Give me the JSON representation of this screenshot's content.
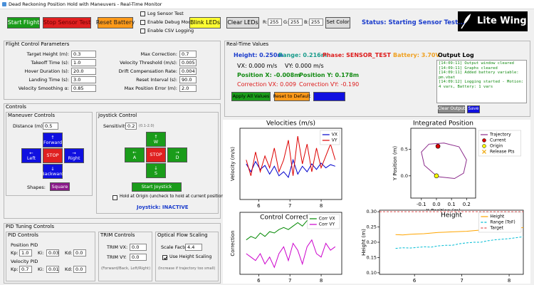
{
  "window": {
    "title": "Dead Reckoning Position Hold with Maneuvers - Real-Time Monitor"
  },
  "toolbar": {
    "start_flight": "Start Flight",
    "stop_sensor_test": "Stop Sensor Test",
    "reset_battery": "Reset Battery",
    "checkboxes": [
      "Log Sensor Test",
      "Enable Debug Mode",
      "Enable CSV Logging"
    ],
    "blink_leds": "Blink LEDs",
    "clear_leds": "Clear LEDs",
    "rgb": [
      {
        "label": "R:",
        "value": "255"
      },
      {
        "label": "G:",
        "value": "255"
      },
      {
        "label": "B:",
        "value": "255"
      }
    ],
    "set_color": "Set Color",
    "status": "Status: Starting Sensor Test...",
    "logo": "Lite Wing"
  },
  "flight_params": {
    "title": "Flight Control Parameters",
    "left": [
      {
        "label": "Target Height (m):",
        "value": "0.3"
      },
      {
        "label": "Takeoff Time (s):",
        "value": "1.0"
      },
      {
        "label": "Hover Duration (s):",
        "value": "20.0"
      },
      {
        "label": "Landing Time (s):",
        "value": "3.0"
      },
      {
        "label": "Velocity Smoothing α:",
        "value": "0.85"
      }
    ],
    "right": [
      {
        "label": "Max Correction:",
        "value": "0.7"
      },
      {
        "label": "Velocity Threshold (m/s):",
        "value": "0.005"
      },
      {
        "label": "Drift Compensation Rate:",
        "value": "0.004"
      },
      {
        "label": "Reset Interval (s):",
        "value": "90.0"
      },
      {
        "label": "Max Position Error (m):",
        "value": "2.0"
      }
    ]
  },
  "realtime": {
    "title": "Real-Time Values",
    "height": "Height: 0.250m",
    "range": "Range: 0.216m",
    "phase": "Phase: SENSOR_TEST",
    "battery": "Battery: 3.70V",
    "vx": "VX: 0.000 m/s",
    "vy": "VY: 0.000 m/s",
    "pos_x": "Position X: -0.008m",
    "pos_y": "Position Y: 0.178m",
    "corr_vx": "Correction VX: 0.009",
    "corr_vy": "Correction VY: -0.190",
    "apply": "Apply All Values",
    "reset": "Reset to Default"
  },
  "output_log": {
    "title": "Output Log",
    "lines": [
      "[14:09:11] Output window cleared",
      "[14:09:11] Graphs cleared",
      "[14:09:11] Added battery variable: pm.vbat",
      "[14:09:12] Logging started - Motion: 4 vars, Battery: 1 vars"
    ],
    "clear": "Clear Output",
    "save": "Save"
  },
  "controls": {
    "title": "Controls",
    "maneuver": {
      "title": "Maneuver Controls",
      "distance_label": "Distance (m):",
      "distance": "0.5",
      "buttons": [
        {
          "icon": "↑",
          "label": "Forward"
        },
        {
          "icon": "←",
          "label": "Left"
        },
        {
          "label": "STOP"
        },
        {
          "icon": "→",
          "label": "Right"
        },
        {
          "icon": "↓",
          "label": "Backward"
        }
      ],
      "shapes_label": "Shapes:",
      "shape": "Square"
    },
    "joystick": {
      "title": "Joystick Control",
      "sensitivity_label": "Sensitivity:",
      "sensitivity": "0.2",
      "range": "(0.1-2.0)",
      "buttons": [
        {
          "icon": "↑",
          "label": "W"
        },
        {
          "icon": "←",
          "label": "A"
        },
        {
          "label": "STOP"
        },
        {
          "icon": "→",
          "label": "D"
        },
        {
          "icon": "↓",
          "label": "S"
        }
      ],
      "start": "Start Joystick",
      "hold": "Hold at Origin (uncheck to hold at current position)",
      "status": "Joystick: INACTIVE"
    }
  },
  "pid": {
    "title": "PID Tuning Controls",
    "pid_controls": {
      "title": "PID Controls",
      "groups": [
        {
          "title": "Position PID",
          "gains": [
            {
              "label": "Kp:",
              "value": "1.0"
            },
            {
              "label": "Ki:",
              "value": "0.03"
            },
            {
              "label": "Kd:",
              "value": "0.0"
            }
          ]
        },
        {
          "title": "Velocity PID",
          "gains": [
            {
              "label": "Kp:",
              "value": "0.7"
            },
            {
              "label": "Ki:",
              "value": "0.01"
            },
            {
              "label": "Kd:",
              "value": "0.0"
            }
          ]
        }
      ]
    },
    "trim": {
      "title": "TRIM Controls",
      "fields": [
        {
          "label": "TRIM VX:",
          "value": "0.0"
        },
        {
          "label": "TRIM VY:",
          "value": "0.0"
        }
      ],
      "note": "(Forward/Back, Left/Right)"
    },
    "optical_flow": {
      "title": "Optical Flow Scaling",
      "scale_label": "Scale Factor:",
      "scale": "4.4",
      "use_height": "Use Height Scaling",
      "use_height_checked": true,
      "note": "(Increase if trajectory too small)"
    }
  },
  "chart_data": [
    {
      "type": "line",
      "title": "Velocities (m/s)",
      "ylabel": "Velocity (m/s)",
      "xlim": [
        5.4,
        8.66
      ],
      "ylim": [
        -0.4,
        0.5
      ],
      "xticks": [
        6,
        7,
        8
      ],
      "legend": "upper right",
      "series": [
        {
          "name": "VX",
          "color": "#0000cc",
          "x": [
            5.6,
            5.75,
            5.9,
            6.05,
            6.2,
            6.35,
            6.5,
            6.65,
            6.8,
            6.95,
            7.1,
            7.25,
            7.4,
            7.55,
            7.7,
            7.85,
            8.0,
            8.15,
            8.3,
            8.45
          ],
          "values": [
            0.05,
            -0.05,
            0.08,
            -0.02,
            0.03,
            -0.08,
            0.02,
            -0.1,
            -0.05,
            -0.12,
            0.1,
            -0.08,
            0.02,
            -0.05,
            0.05,
            -0.02,
            0.06,
            0.0,
            0.04,
            0.02
          ]
        },
        {
          "name": "VY",
          "color": "#dd0000",
          "x": [
            5.6,
            5.75,
            5.9,
            6.05,
            6.2,
            6.35,
            6.5,
            6.65,
            6.8,
            6.95,
            7.1,
            7.25,
            7.4,
            7.55,
            7.7,
            7.85,
            8.0,
            8.15,
            8.3,
            8.45
          ],
          "values": [
            0.1,
            -0.1,
            0.2,
            -0.05,
            0.15,
            0.0,
            0.25,
            -0.05,
            0.1,
            0.35,
            -0.1,
            0.4,
            0.05,
            0.3,
            -0.05,
            0.25,
            0.0,
            0.15,
            0.3,
            0.1
          ]
        }
      ]
    },
    {
      "type": "line",
      "title": "Integrated Position",
      "xlabel": "X Position (m)",
      "ylabel": "Y Position (m)",
      "xlim": [
        -0.17,
        0.26
      ],
      "ylim": [
        -0.42,
        0.9
      ],
      "xticks": [
        -0.1,
        {
          "value": 0,
          "label": "0.0"
        },
        0.1,
        0.2
      ],
      "yticks": [
        {
          "value": 0,
          "label": "0.0"
        },
        0.5
      ],
      "legend": "outside right",
      "series": [
        {
          "name": "Trajectory",
          "color": "#8b2b8b",
          "x": [
            0.0,
            -0.08,
            -0.1,
            -0.05,
            0.05,
            0.15,
            0.2,
            0.18,
            0.12,
            0.02,
            0.0
          ],
          "values": [
            0.0,
            0.2,
            0.45,
            0.6,
            0.62,
            0.55,
            0.3,
            0.05,
            -0.05,
            -0.02,
            0.0
          ]
        },
        {
          "name": "Current",
          "color": "#dd0000",
          "marker": "circle",
          "x": [
            0.01
          ],
          "values": [
            0.56
          ]
        },
        {
          "name": "Origin",
          "color": "#ffff00",
          "marker": "circle",
          "x": [
            0
          ],
          "values": [
            0
          ]
        },
        {
          "name": "Release Pts",
          "color": "#f0b020",
          "marker": "x",
          "x": [],
          "values": []
        }
      ]
    },
    {
      "type": "line",
      "title": "Control Corrections",
      "ylabel": "Correction",
      "xlim": [
        5.4,
        8.66
      ],
      "ylim": [
        -0.6,
        0.3
      ],
      "xticks": [
        6,
        7,
        8
      ],
      "legend": "upper right",
      "series": [
        {
          "name": "Corr VX",
          "color": "#008800",
          "x": [
            5.6,
            5.75,
            5.9,
            6.05,
            6.2,
            6.35,
            6.5,
            6.65,
            6.8,
            6.95,
            7.1,
            7.25,
            7.4,
            7.55,
            7.7,
            7.85,
            8.0,
            8.15,
            8.3,
            8.45
          ],
          "values": [
            -0.1,
            -0.05,
            -0.08,
            0.0,
            -0.05,
            0.02,
            0.0,
            0.05,
            0.08,
            0.05,
            0.1,
            0.15,
            0.1,
            0.18,
            0.15,
            0.2,
            0.18,
            0.15,
            0.2,
            0.18
          ]
        },
        {
          "name": "Corr VY",
          "color": "#cc00cc",
          "x": [
            5.6,
            5.75,
            5.9,
            6.05,
            6.2,
            6.35,
            6.5,
            6.65,
            6.8,
            6.95,
            7.1,
            7.25,
            7.4,
            7.55,
            7.7,
            7.85,
            8.0,
            8.15,
            8.3,
            8.45
          ],
          "values": [
            -0.3,
            -0.35,
            -0.4,
            -0.3,
            -0.45,
            -0.35,
            -0.5,
            -0.3,
            -0.2,
            -0.4,
            -0.15,
            -0.25,
            -0.45,
            -0.2,
            -0.1,
            -0.3,
            -0.35,
            -0.15,
            -0.25,
            -0.2
          ]
        }
      ]
    },
    {
      "type": "line",
      "title": "Height",
      "ylabel": "Height (m)",
      "xlim": [
        5.26,
        8.3
      ],
      "ylim": [
        0.095,
        0.305
      ],
      "xticks": [
        6,
        7,
        8
      ],
      "yticks": [
        {
          "value": 0.1,
          "label": "0.10"
        },
        0.15,
        {
          "value": 0.2,
          "label": "0.20"
        },
        0.25,
        {
          "value": 0.3,
          "label": "0.30"
        }
      ],
      "legend": "upper right",
      "series": [
        {
          "name": "Height",
          "color": "#ffa500",
          "x": [
            5.6,
            5.75,
            5.9,
            6.05,
            6.2,
            6.35,
            6.5,
            6.65,
            6.8,
            6.95,
            7.1,
            7.25,
            7.4,
            7.55,
            7.7,
            7.85,
            8.0,
            8.15,
            8.3
          ],
          "values": [
            0.225,
            0.224,
            0.226,
            0.227,
            0.228,
            0.23,
            0.232,
            0.233,
            0.234,
            0.235,
            0.236,
            0.238,
            0.24,
            0.241,
            0.242,
            0.244,
            0.245,
            0.246,
            0.248
          ]
        },
        {
          "name": "Range (ToF)",
          "color": "#00bcd4",
          "dash": true,
          "x": [
            5.6,
            5.75,
            5.9,
            6.05,
            6.2,
            6.35,
            6.5,
            6.65,
            6.8,
            6.95,
            7.1,
            7.25,
            7.4,
            7.55,
            7.7,
            7.85,
            8.0,
            8.15,
            8.3
          ],
          "values": [
            0.18,
            0.182,
            0.181,
            0.183,
            0.185,
            0.184,
            0.188,
            0.19,
            0.19,
            0.195,
            0.198,
            0.2,
            0.2,
            0.205,
            0.208,
            0.21,
            0.212,
            0.215,
            0.218
          ]
        },
        {
          "name": "Target",
          "color": "#e05050",
          "dash": true,
          "x": [
            5.26,
            8.3
          ],
          "values": [
            0.3,
            0.3
          ]
        }
      ]
    }
  ]
}
